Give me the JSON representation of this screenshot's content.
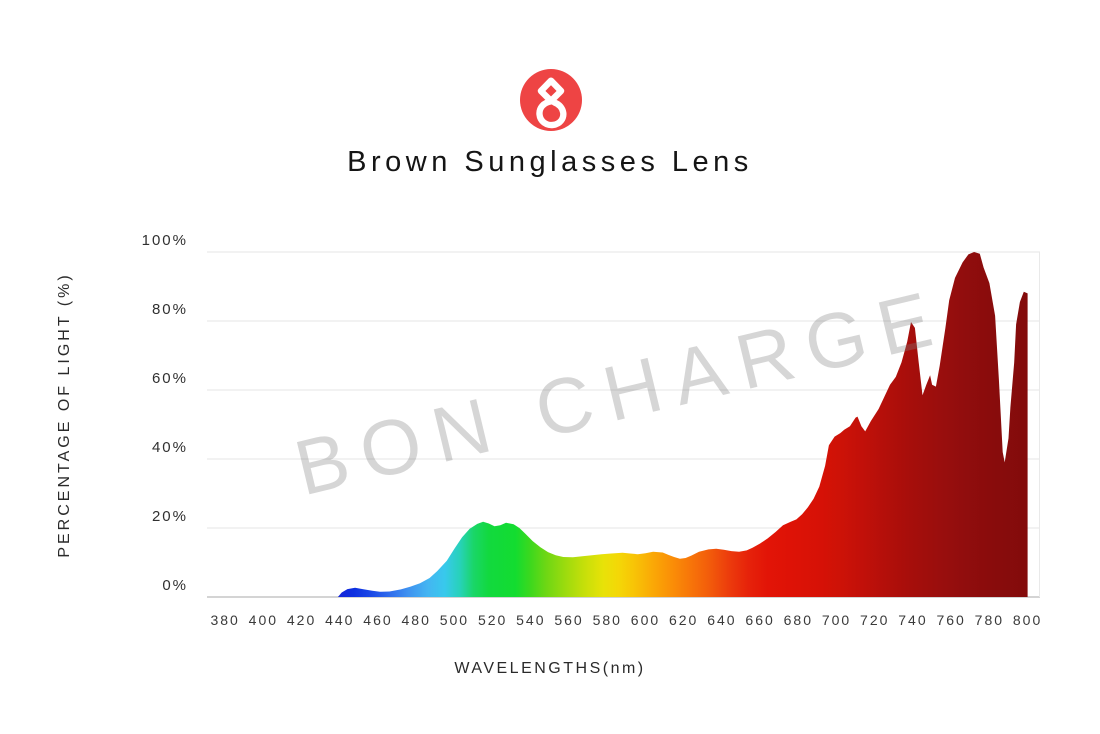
{
  "brand": {
    "watermark": "BON CHARGE",
    "logo_color": "#ee4444",
    "logo_glyph": "figure-8-monogram"
  },
  "title": "Brown Sunglasses Lens",
  "chart_data": {
    "type": "area",
    "title": "Brown Sunglasses Lens",
    "xlabel": "WAVELENGTHS(nm)",
    "ylabel": "PERCENTAGE OF LIGHT (%)",
    "xlim": [
      370.5,
      806.5
    ],
    "ylim": [
      0,
      100
    ],
    "grid": "horizontal",
    "legend": "none",
    "x_ticks": [
      380,
      400,
      420,
      440,
      460,
      480,
      500,
      520,
      540,
      560,
      580,
      600,
      620,
      640,
      660,
      680,
      700,
      720,
      740,
      760,
      780,
      800
    ],
    "y_ticks": [
      0,
      20,
      40,
      60,
      80,
      100
    ],
    "y_tick_labels": [
      "0%",
      "20%",
      "40%",
      "60%",
      "80%",
      "100%"
    ],
    "grid_color": "#e4e4e4",
    "axis_line_color": "#c6c6c6",
    "series": [
      {
        "points": [
          [
            439,
            0
          ],
          [
            441,
            1.3
          ],
          [
            444,
            2.3
          ],
          [
            448,
            2.7
          ],
          [
            452,
            2.3
          ],
          [
            457,
            1.8
          ],
          [
            461,
            1.5
          ],
          [
            466,
            1.6
          ],
          [
            472,
            2.2
          ],
          [
            477,
            3.0
          ],
          [
            482,
            4.0
          ],
          [
            487,
            5.5
          ],
          [
            491,
            7.5
          ],
          [
            496,
            10.5
          ],
          [
            500,
            14.0
          ],
          [
            504,
            17.3
          ],
          [
            508,
            19.8
          ],
          [
            512,
            21.2
          ],
          [
            515,
            21.8
          ],
          [
            518,
            21.3
          ],
          [
            521,
            20.5
          ],
          [
            524,
            20.8
          ],
          [
            527,
            21.5
          ],
          [
            531,
            21.1
          ],
          [
            534,
            20.0
          ],
          [
            537,
            18.4
          ],
          [
            541,
            16.2
          ],
          [
            545,
            14.4
          ],
          [
            549,
            13.0
          ],
          [
            553,
            12.1
          ],
          [
            557,
            11.6
          ],
          [
            562,
            11.5
          ],
          [
            567,
            11.8
          ],
          [
            572,
            12.1
          ],
          [
            577,
            12.4
          ],
          [
            582,
            12.6
          ],
          [
            588,
            12.8
          ],
          [
            592,
            12.6
          ],
          [
            596,
            12.4
          ],
          [
            600,
            12.7
          ],
          [
            604,
            13.1
          ],
          [
            609,
            12.9
          ],
          [
            612,
            12.2
          ],
          [
            615,
            11.6
          ],
          [
            618,
            11.1
          ],
          [
            621,
            11.3
          ],
          [
            624,
            12.0
          ],
          [
            628,
            13.1
          ],
          [
            633,
            13.8
          ],
          [
            637,
            14.0
          ],
          [
            641,
            13.7
          ],
          [
            645,
            13.3
          ],
          [
            649,
            13.1
          ],
          [
            653,
            13.5
          ],
          [
            656,
            14.3
          ],
          [
            660,
            15.5
          ],
          [
            664,
            17.0
          ],
          [
            668,
            18.8
          ],
          [
            672,
            20.8
          ],
          [
            676,
            21.8
          ],
          [
            679,
            22.5
          ],
          [
            682,
            24.0
          ],
          [
            685,
            26.0
          ],
          [
            688,
            28.5
          ],
          [
            691,
            32.0
          ],
          [
            694,
            38.0
          ],
          [
            696,
            44.0
          ],
          [
            699,
            46.5
          ],
          [
            702,
            47.5
          ],
          [
            704,
            48.5
          ],
          [
            707,
            49.5
          ],
          [
            710,
            52.0
          ],
          [
            711,
            52.3
          ],
          [
            713,
            49.5
          ],
          [
            715,
            48.0
          ],
          [
            718,
            51.0
          ],
          [
            722,
            54.5
          ],
          [
            725,
            58.0
          ],
          [
            728,
            61.5
          ],
          [
            731,
            63.8
          ],
          [
            734,
            68.0
          ],
          [
            737,
            74.0
          ],
          [
            739,
            79.7
          ],
          [
            741,
            78.0
          ],
          [
            743,
            68.0
          ],
          [
            745,
            58.5
          ],
          [
            747,
            61.5
          ],
          [
            749,
            64.3
          ],
          [
            750,
            61.5
          ],
          [
            752,
            61.0
          ],
          [
            754,
            67.0
          ],
          [
            757,
            78.0
          ],
          [
            759,
            86.0
          ],
          [
            762,
            92.5
          ],
          [
            766,
            97.0
          ],
          [
            769,
            99.3
          ],
          [
            772,
            100
          ],
          [
            775,
            99.5
          ],
          [
            777,
            95.5
          ],
          [
            780,
            91.0
          ],
          [
            783,
            81.5
          ],
          [
            785,
            63.0
          ],
          [
            787,
            42.0
          ],
          [
            788,
            39.0
          ],
          [
            790,
            46.0
          ],
          [
            791,
            55.0
          ],
          [
            793,
            68.0
          ],
          [
            794,
            79.0
          ],
          [
            796,
            85.5
          ],
          [
            798,
            88.5
          ],
          [
            800,
            88.0
          ]
        ]
      }
    ],
    "gradient_stops": [
      {
        "wavelength": 439,
        "color": "#1626d8"
      },
      {
        "wavelength": 447,
        "color": "#0d2fe0"
      },
      {
        "wavelength": 456,
        "color": "#1a47e6"
      },
      {
        "wavelength": 466,
        "color": "#2f6cec"
      },
      {
        "wavelength": 476,
        "color": "#3f93f0"
      },
      {
        "wavelength": 486,
        "color": "#44b5f2"
      },
      {
        "wavelength": 495,
        "color": "#38c9ec"
      },
      {
        "wavelength": 503,
        "color": "#27d2b8"
      },
      {
        "wavelength": 510,
        "color": "#1ad668"
      },
      {
        "wavelength": 518,
        "color": "#12d93e"
      },
      {
        "wavelength": 532,
        "color": "#13dc30"
      },
      {
        "wavelength": 540,
        "color": "#3ed81d"
      },
      {
        "wavelength": 548,
        "color": "#6ed714"
      },
      {
        "wavelength": 558,
        "color": "#9cdb0e"
      },
      {
        "wavelength": 568,
        "color": "#c6df0a"
      },
      {
        "wavelength": 578,
        "color": "#e8e208"
      },
      {
        "wavelength": 586,
        "color": "#f4d707"
      },
      {
        "wavelength": 594,
        "color": "#f8c406"
      },
      {
        "wavelength": 604,
        "color": "#faa806"
      },
      {
        "wavelength": 614,
        "color": "#fa8e07"
      },
      {
        "wavelength": 624,
        "color": "#f77409"
      },
      {
        "wavelength": 634,
        "color": "#f25a0b"
      },
      {
        "wavelength": 644,
        "color": "#ec3b0c"
      },
      {
        "wavelength": 654,
        "color": "#e6220a"
      },
      {
        "wavelength": 664,
        "color": "#e21407"
      },
      {
        "wavelength": 678,
        "color": "#dd1206"
      },
      {
        "wavelength": 692,
        "color": "#d61106"
      },
      {
        "wavelength": 702,
        "color": "#cd1207"
      },
      {
        "wavelength": 714,
        "color": "#c11009"
      },
      {
        "wavelength": 726,
        "color": "#b30f0a"
      },
      {
        "wavelength": 740,
        "color": "#a50e0b"
      },
      {
        "wavelength": 754,
        "color": "#9a0e0d"
      },
      {
        "wavelength": 768,
        "color": "#900d0d"
      },
      {
        "wavelength": 782,
        "color": "#890c0c"
      },
      {
        "wavelength": 800,
        "color": "#830b0b"
      }
    ]
  }
}
